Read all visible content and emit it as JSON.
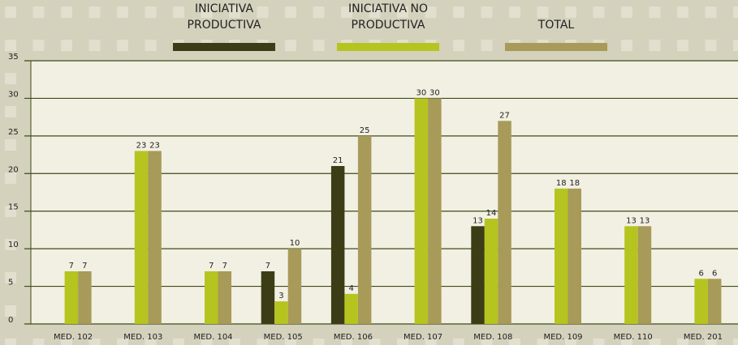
{
  "chart_data": {
    "type": "bar",
    "categories": [
      "MED. 102",
      "MED. 103",
      "MED. 104",
      "MED. 105",
      "MED. 106",
      "MED. 107",
      "MED. 108",
      "MED. 109",
      "MED. 110",
      "MED. 201"
    ],
    "series": [
      {
        "name": "INICIATIVA PRODUCTIVA",
        "color": "#3c3c17",
        "values": [
          null,
          null,
          null,
          7,
          21,
          null,
          13,
          null,
          null,
          null
        ]
      },
      {
        "name": "INICIATIVA NO PRODUCTIVA",
        "color": "#b6c41f",
        "values": [
          7,
          23,
          7,
          3,
          4,
          30,
          14,
          18,
          13,
          6
        ]
      },
      {
        "name": "TOTAL",
        "color": "#a89a58",
        "values": [
          7,
          23,
          7,
          10,
          25,
          30,
          27,
          18,
          13,
          6
        ]
      }
    ],
    "ylim": [
      0,
      35
    ],
    "yticks": [
      0,
      5,
      10,
      15,
      20,
      25,
      30,
      35
    ],
    "grid": true,
    "legend": "top"
  }
}
